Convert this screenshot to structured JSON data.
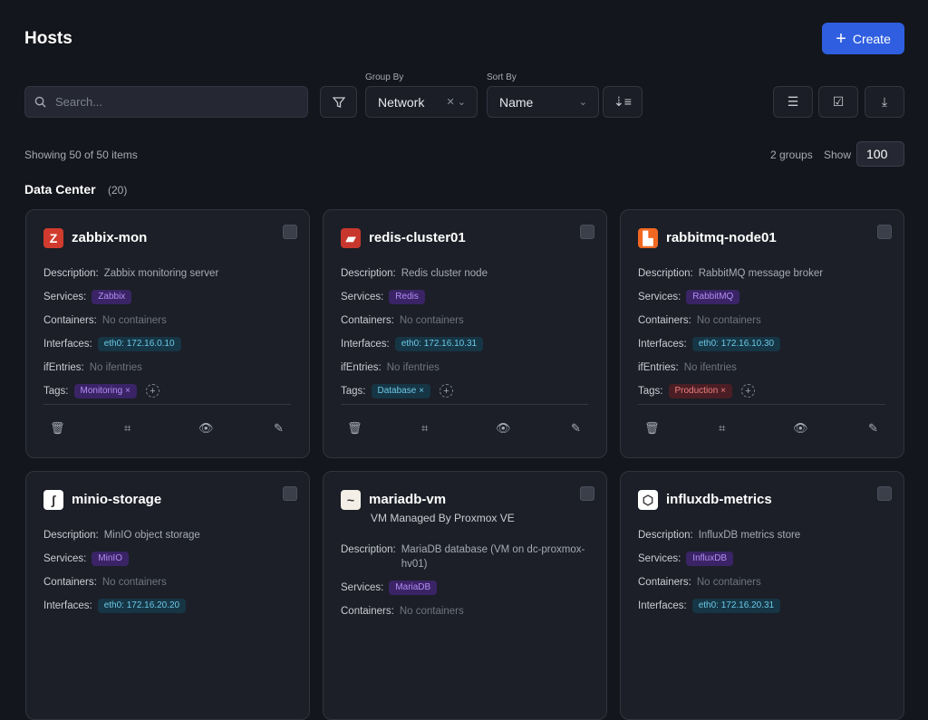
{
  "header": {
    "title": "Hosts",
    "create_label": "Create"
  },
  "toolbar": {
    "search_placeholder": "Search...",
    "group_by_label": "Group By",
    "group_by_value": "Network",
    "sort_by_label": "Sort By",
    "sort_by_value": "Name"
  },
  "summary": {
    "showing": "Showing 50 of 50 items",
    "groups": "2 groups",
    "show_label": "Show",
    "show_value": "100"
  },
  "group": {
    "name": "Data Center",
    "count": "(20)"
  },
  "labels": {
    "description": "Description:",
    "services": "Services:",
    "containers": "Containers:",
    "interfaces": "Interfaces:",
    "ifentries": "ifEntries:",
    "tags": "Tags:"
  },
  "cards": [
    {
      "name": "zabbix-mon",
      "icon": "zabbix-logo",
      "logo_text": "Z",
      "logo_bg": "#d13b2e",
      "description": "Zabbix monitoring server",
      "services": [
        "Zabbix"
      ],
      "containers": "No containers",
      "interfaces": [
        "eth0: 172.16.0.10"
      ],
      "ifentries": "No ifentries",
      "tags": [
        {
          "label": "Monitoring",
          "color": "purple"
        }
      ]
    },
    {
      "name": "redis-cluster01",
      "icon": "redis-logo",
      "logo_text": "▰",
      "logo_bg": "#c8372d",
      "description": "Redis cluster node",
      "services": [
        "Redis"
      ],
      "containers": "No containers",
      "interfaces": [
        "eth0: 172.16.10.31"
      ],
      "ifentries": "No ifentries",
      "tags": [
        {
          "label": "Database",
          "color": "cyan"
        }
      ]
    },
    {
      "name": "rabbitmq-node01",
      "icon": "rabbitmq-logo",
      "logo_text": "▙",
      "logo_bg": "#f26822",
      "description": "RabbitMQ message broker",
      "services": [
        "RabbitMQ"
      ],
      "containers": "No containers",
      "interfaces": [
        "eth0: 172.16.10.30"
      ],
      "ifentries": "No ifentries",
      "tags": [
        {
          "label": "Production",
          "color": "red"
        }
      ]
    },
    {
      "name": "minio-storage",
      "icon": "minio-logo",
      "logo_text": "ʃ",
      "logo_bg": "#ffffff",
      "description": "MinIO object storage",
      "services": [
        "MinIO"
      ],
      "containers": "No containers",
      "interfaces": [
        "eth0: 172.16.20.20"
      ]
    },
    {
      "name": "mariadb-vm",
      "subtitle": "VM Managed By Proxmox VE",
      "icon": "mariadb-logo",
      "logo_text": "~",
      "logo_bg": "#f3efe6",
      "description": "MariaDB database (VM on dc-proxmox-hv01)",
      "services": [
        "MariaDB"
      ],
      "containers": "No containers"
    },
    {
      "name": "influxdb-metrics",
      "icon": "influxdb-logo",
      "logo_text": "⬡",
      "logo_bg": "#ffffff",
      "description": "InfluxDB metrics store",
      "services": [
        "InfluxDB"
      ],
      "containers": "No containers",
      "interfaces": [
        "eth0: 172.16.20.31"
      ]
    }
  ]
}
